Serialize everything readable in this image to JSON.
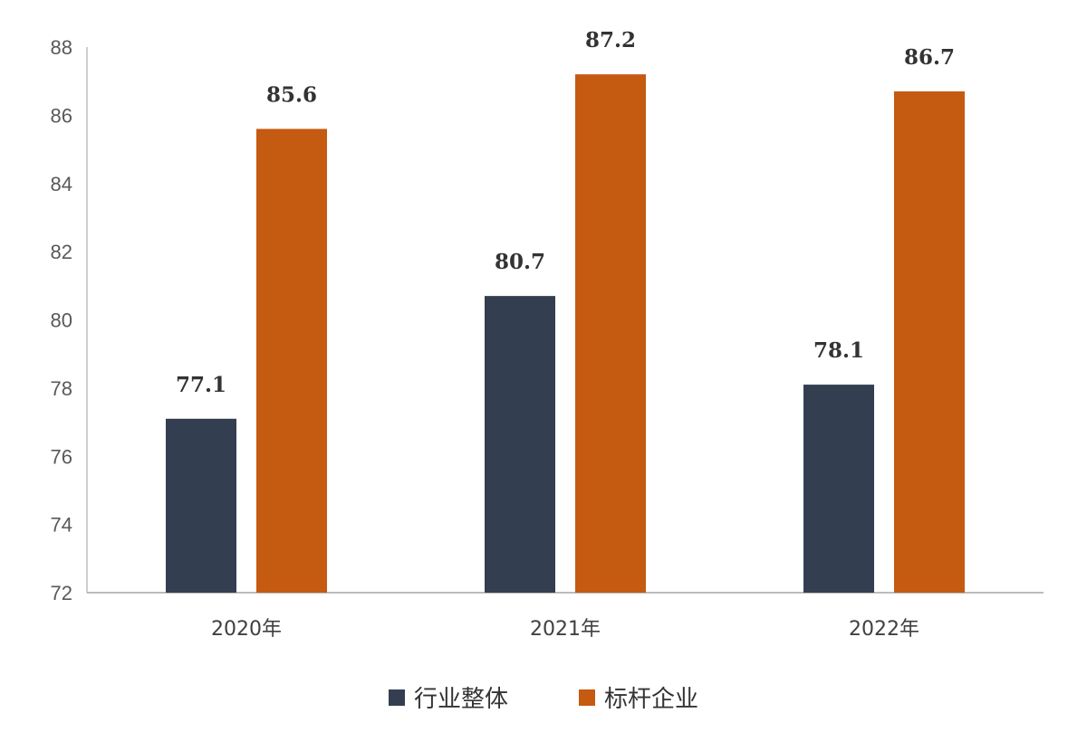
{
  "chart_data": {
    "type": "bar",
    "categories": [
      "2020年",
      "2021年",
      "2022年"
    ],
    "series": [
      {
        "name": "行业整体",
        "color": "#333f50",
        "values": [
          77.1,
          80.7,
          78.1
        ],
        "labels": [
          "77.1",
          "80.7",
          "78.1"
        ]
      },
      {
        "name": "标杆企业",
        "color": "#c55a11",
        "values": [
          85.6,
          87.2,
          86.7
        ],
        "labels": [
          "85.6",
          "87.2",
          "86.7"
        ]
      }
    ],
    "ylim": [
      72,
      88
    ],
    "yticks": [
      "72",
      "74",
      "76",
      "78",
      "80",
      "82",
      "84",
      "86",
      "88"
    ],
    "grid": false,
    "legend_position": "bottom"
  }
}
